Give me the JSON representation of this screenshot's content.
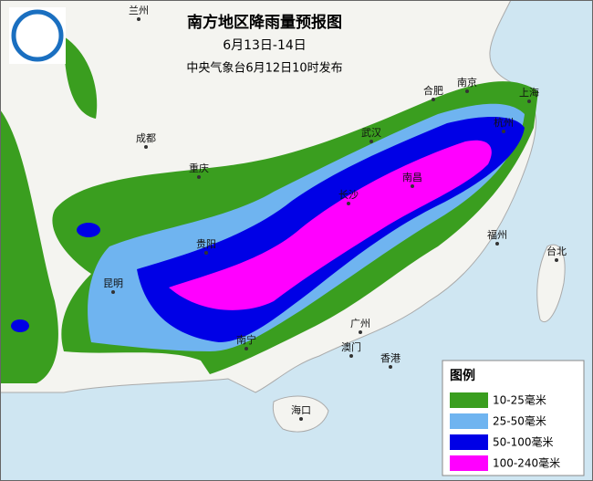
{
  "title": "南方地区降雨量预报图",
  "subtitle": "6月13日-14日",
  "issuer": "中央气象台6月12日10时发布",
  "cities": [
    "兰州",
    "成都",
    "重庆",
    "贵阳",
    "昆明",
    "南宁",
    "广州",
    "澳门",
    "香港",
    "海口",
    "长沙",
    "南昌",
    "武汉",
    "合肥",
    "南京",
    "上海",
    "杭州",
    "福州",
    "台北"
  ],
  "legend": {
    "title": "图例",
    "items": [
      {
        "label": "10-25毫米",
        "color": "#3a9e1f"
      },
      {
        "label": "25-50毫米",
        "color": "#6fb4f0"
      },
      {
        "label": "50-100毫米",
        "color": "#0000e6"
      },
      {
        "label": "100-240毫米",
        "color": "#ff00ff"
      }
    ]
  }
}
